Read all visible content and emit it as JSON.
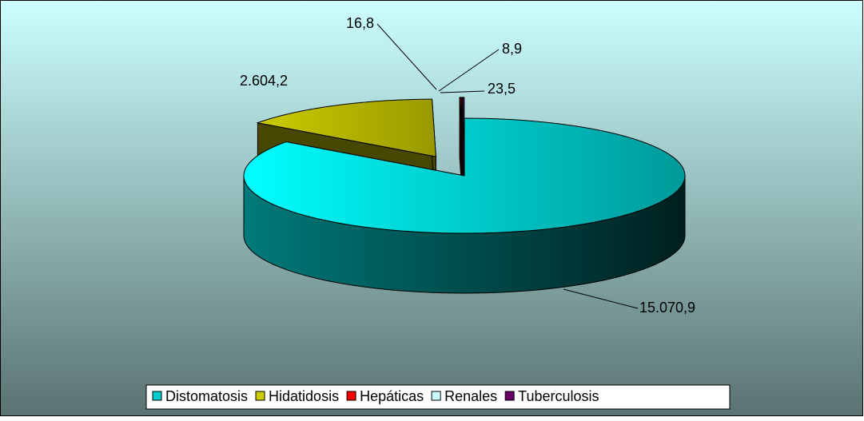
{
  "chart_data": {
    "type": "pie3d",
    "categories": [
      "Distomatosis",
      "Hidatidosis",
      "Hepáticas",
      "Renales",
      "Tuberculosis"
    ],
    "values": [
      15070.9,
      2604.2,
      16.8,
      8.9,
      23.5
    ],
    "value_labels": [
      "15.070,9",
      "2.604,2",
      "16,8",
      "8,9",
      "23,5"
    ],
    "colors": [
      "#00cccc",
      "#cccc00",
      "#ff0000",
      "#ccffff",
      "#660066"
    ],
    "legend": "bottom"
  }
}
